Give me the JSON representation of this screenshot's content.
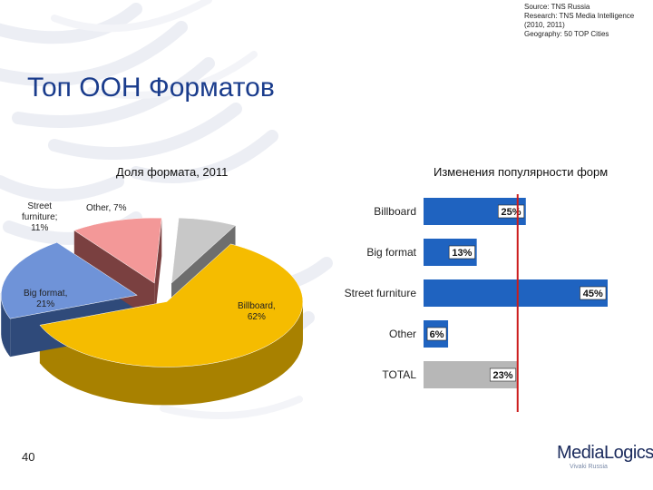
{
  "source": {
    "line1": "Source: TNS Russia",
    "line2": "Research: TNS Media Intelligence",
    "line3": "(2010, 2011)",
    "line4": "Geography: 50 TOP Cities"
  },
  "page_title": "Топ ООН Форматов",
  "page_number": "40",
  "logo": {
    "name": "MediaLogics",
    "tagline": "Vivaki Russia"
  },
  "chart_data": [
    {
      "type": "pie",
      "title": "Доля формата, 2011",
      "slices": [
        {
          "name": "Billboard",
          "value": 62,
          "label_line1": "Billboard,",
          "label_line2": "62%",
          "color": "#f5bc00",
          "side": "#a88100"
        },
        {
          "name": "Big format",
          "value": 21,
          "label_line1": "Big format,",
          "label_line2": "21%",
          "color": "#6f93d8",
          "side": "#2f4a7a"
        },
        {
          "name": "Street furniture",
          "value": 11,
          "label_line1": "Street",
          "label_line2": "furniture;",
          "label_line3": "11%",
          "color": "#f39898",
          "side": "#7a4040"
        },
        {
          "name": "Other",
          "value": 7,
          "label_line1": "Other, 7%",
          "color": "#c8c8c8",
          "side": "#6e6e6e"
        }
      ]
    },
    {
      "type": "bar",
      "orientation": "horizontal",
      "title": "Изменения популярности форм",
      "categories": [
        "Billboard",
        "Big format",
        "Street furniture",
        "Other",
        "TOTAL"
      ],
      "values": [
        25,
        13,
        45,
        6,
        23
      ],
      "value_labels": [
        "25%",
        "13%",
        "45%",
        "6%",
        "23%"
      ],
      "colors": [
        "#1f63c0",
        "#1f63c0",
        "#1f63c0",
        "#1f63c0",
        "#b7b7b7"
      ],
      "reference_line": {
        "value": 23,
        "color": "#cc1c1c"
      },
      "xlim": [
        0,
        45
      ]
    }
  ]
}
